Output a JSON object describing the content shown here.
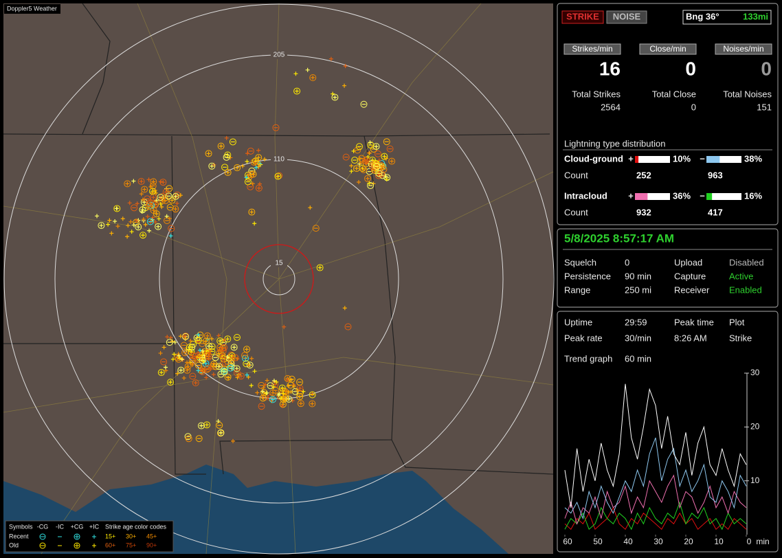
{
  "header": {
    "title": "Doppler5 Weather"
  },
  "map": {
    "ring_labels": [
      205,
      110,
      15
    ]
  },
  "legend": {
    "title": "Symbols",
    "symbols": [
      "-CG",
      "-IC",
      "+CG",
      "+IC"
    ],
    "age_title": "Strike age color codes",
    "rows": [
      {
        "label": "Recent",
        "ages": [
          "15+",
          "30+",
          "45+"
        ]
      },
      {
        "label": "Old",
        "ages": [
          "60+",
          "75+",
          "90+"
        ]
      }
    ]
  },
  "status": {
    "strike": "STRIKE",
    "noise": "NOISE",
    "bearing": "Bng 36°",
    "distance": "133mi"
  },
  "rates": [
    {
      "label": "Strikes/min",
      "value": 16,
      "total_label": "Total Strikes",
      "total": 2564
    },
    {
      "label": "Close/min",
      "value": 0,
      "total_label": "Total Close",
      "total": 0
    },
    {
      "label": "Noises/min",
      "value": 0,
      "total_label": "Total Noises",
      "total": 151
    }
  ],
  "distribution": {
    "title": "Lightning type distribution",
    "rows": [
      {
        "name": "Cloud-ground",
        "count_label": "Count",
        "items": [
          {
            "sign": "+",
            "percent": 10,
            "percent_label": "10%",
            "count": 252,
            "color": "#e01010"
          },
          {
            "sign": "−",
            "percent": 38,
            "percent_label": "38%",
            "count": 963,
            "color": "#8ec8f0"
          }
        ]
      },
      {
        "name": "Intracloud",
        "count_label": "Count",
        "items": [
          {
            "sign": "+",
            "percent": 36,
            "percent_label": "36%",
            "count": 932,
            "color": "#f070b0"
          },
          {
            "sign": "−",
            "percent": 16,
            "percent_label": "16%",
            "count": 417,
            "color": "#20d020"
          }
        ]
      }
    ]
  },
  "clock": {
    "datetime": "5/8/2025 8:57:17 AM"
  },
  "settings": [
    [
      {
        "label": "Squelch",
        "value": 0
      },
      {
        "label": "Upload",
        "value": "Disabled",
        "color": "#b8b8b8"
      }
    ],
    [
      {
        "label": "Persistence",
        "value": "90 min"
      },
      {
        "label": "Capture",
        "value": "Active",
        "color": "#2ed02e"
      }
    ],
    [
      {
        "label": "Range",
        "value": "250 mi"
      },
      {
        "label": "Receiver",
        "value": "Enabled",
        "color": "#2ed02e"
      }
    ]
  ],
  "stats": [
    {
      "label": "Uptime",
      "value": "29:59"
    },
    {
      "label": "Peak rate",
      "value": "30/min"
    },
    {
      "label": "Peak time",
      "value": "8:26 AM"
    },
    {
      "label": "Plot",
      "value": "Strike"
    }
  ],
  "trend_label": "Trend graph",
  "trend_span": "60 min",
  "trend": {
    "type": "line",
    "x": [
      60,
      58,
      56,
      54,
      52,
      50,
      48,
      46,
      44,
      42,
      40,
      38,
      36,
      34,
      32,
      30,
      28,
      26,
      24,
      22,
      20,
      18,
      16,
      14,
      12,
      10,
      8,
      6,
      4,
      2,
      0
    ],
    "xlim": [
      60,
      0
    ],
    "ylim": [
      0,
      30
    ],
    "yticks": [
      10,
      20,
      30
    ],
    "xticks": [
      60,
      50,
      40,
      30,
      20,
      10,
      0
    ],
    "x_label": "min",
    "series": [
      {
        "color": "#ffffff",
        "values": [
          12,
          5,
          16,
          8,
          14,
          10,
          17,
          12,
          9,
          15,
          28,
          18,
          14,
          20,
          27,
          24,
          16,
          22,
          15,
          13,
          19,
          11,
          17,
          20,
          13,
          11,
          16,
          12,
          9,
          15,
          13
        ]
      },
      {
        "color": "#8ec8f0",
        "values": [
          5,
          4,
          6,
          3,
          8,
          5,
          9,
          6,
          4,
          7,
          10,
          8,
          12,
          9,
          15,
          18,
          10,
          14,
          16,
          9,
          12,
          8,
          10,
          13,
          7,
          6,
          10,
          8,
          5,
          11,
          9
        ]
      },
      {
        "color": "#f070b0",
        "values": [
          3,
          6,
          2,
          5,
          4,
          7,
          3,
          8,
          5,
          6,
          9,
          4,
          7,
          5,
          10,
          8,
          6,
          9,
          11,
          5,
          8,
          7,
          4,
          6,
          9,
          5,
          7,
          4,
          8,
          6,
          5
        ]
      },
      {
        "color": "#20d020",
        "values": [
          1,
          3,
          2,
          4,
          1,
          2,
          5,
          3,
          2,
          4,
          3,
          1,
          4,
          2,
          5,
          3,
          2,
          4,
          3,
          6,
          2,
          4,
          3,
          5,
          2,
          3,
          1,
          4,
          2,
          3,
          2
        ]
      },
      {
        "color": "#e01010",
        "values": [
          2,
          1,
          3,
          2,
          4,
          1,
          2,
          3,
          5,
          2,
          1,
          3,
          2,
          4,
          3,
          2,
          1,
          3,
          2,
          4,
          2,
          3,
          1,
          2,
          3,
          1,
          2,
          1,
          3,
          2,
          1
        ]
      }
    ]
  }
}
